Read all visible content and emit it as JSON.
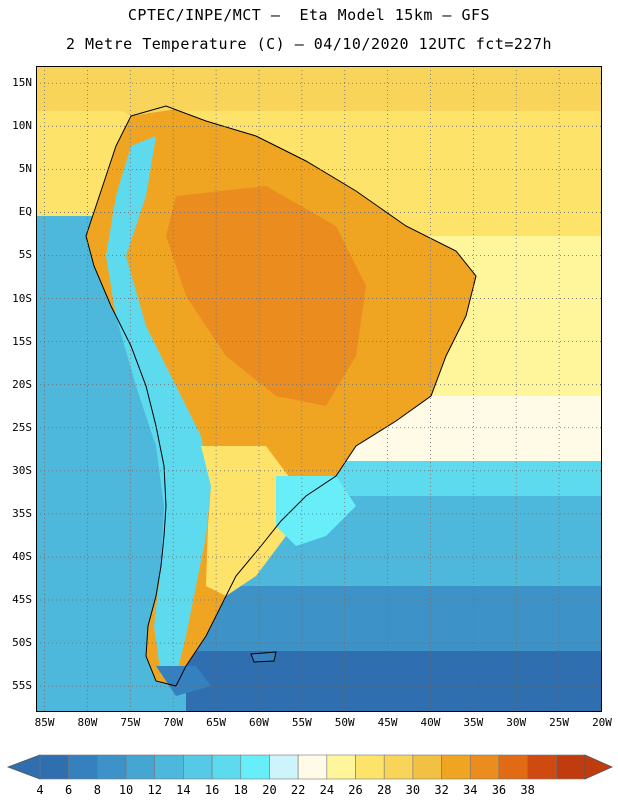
{
  "header": {
    "title_line1": "CPTEC/INPE/MCT –  Eta Model 15km – GFS",
    "title_line2": "2 Metre Temperature (C) – 04/10/2020 12UTC fct=227h"
  },
  "axes": {
    "lat_labels": [
      "15N",
      "10N",
      "5N",
      "EQ",
      "5S",
      "10S",
      "15S",
      "20S",
      "25S",
      "30S",
      "35S",
      "40S",
      "45S",
      "50S",
      "55S"
    ],
    "lat_values": [
      15,
      10,
      5,
      0,
      -5,
      -10,
      -15,
      -20,
      -25,
      -30,
      -35,
      -40,
      -45,
      -50,
      -55
    ],
    "lon_labels": [
      "85W",
      "80W",
      "75W",
      "70W",
      "65W",
      "60W",
      "55W",
      "50W",
      "45W",
      "40W",
      "35W",
      "30W",
      "25W",
      "20W"
    ],
    "lon_values": [
      -85,
      -80,
      -75,
      -70,
      -65,
      -60,
      -55,
      -50,
      -45,
      -40,
      -35,
      -30,
      -25,
      -20
    ],
    "lat_range": [
      -58,
      17
    ],
    "lon_range": [
      -86,
      -20
    ],
    "grid": "dotted"
  },
  "colorbar": {
    "labels": [
      "4",
      "6",
      "8",
      "10",
      "12",
      "14",
      "16",
      "18",
      "20",
      "22",
      "24",
      "26",
      "28",
      "30",
      "32",
      "34",
      "36",
      "38"
    ],
    "colors": [
      "#2f6fb0",
      "#3580bf",
      "#3d93c8",
      "#45a5d3",
      "#4db8dc",
      "#55c9e5",
      "#5edaee",
      "#67eef8",
      "#cdf3fb",
      "#fffbe6",
      "#fff59a",
      "#fde36a",
      "#f8d45a",
      "#f2c143",
      "#f0a522",
      "#ea8c1e",
      "#e06b14",
      "#cf4a10",
      "#c03c0e"
    ]
  }
}
